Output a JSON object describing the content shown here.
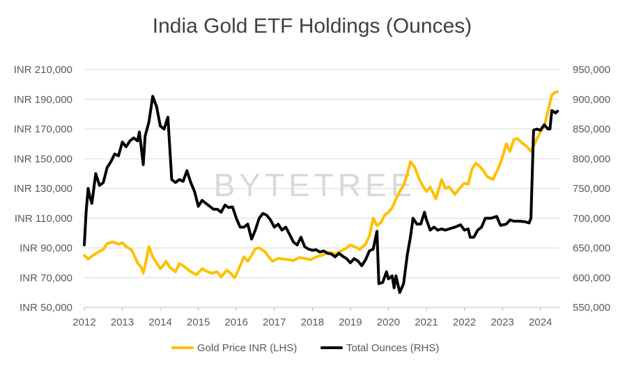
{
  "chart_data": {
    "type": "line",
    "title": "India Gold ETF Holdings (Ounces)",
    "watermark": "BYTETREE",
    "x_ticks": [
      "2012",
      "2013",
      "2014",
      "2015",
      "2016",
      "2017",
      "2018",
      "2019",
      "2020",
      "2021",
      "2022",
      "2023",
      "2024"
    ],
    "xlim": [
      2012,
      2024.5
    ],
    "left_axis": {
      "ticks": [
        "INR 50,000",
        "INR 70,000",
        "INR 90,000",
        "INR 110,000",
        "INR 130,000",
        "INR 150,000",
        "INR 170,000",
        "INR 190,000",
        "INR 210,000"
      ],
      "ylim": [
        50000,
        210000
      ]
    },
    "right_axis": {
      "ticks": [
        "550,000",
        "600,000",
        "650,000",
        "700,000",
        "750,000",
        "800,000",
        "850,000",
        "900,000",
        "950,000"
      ],
      "ylim": [
        550000,
        950000
      ]
    },
    "grid": true,
    "legend_position": "bottom",
    "series": [
      {
        "name": "Gold Price INR (LHS)",
        "axis": "left",
        "color": "#FFC000",
        "points": [
          [
            2012.0,
            85000
          ],
          [
            2012.1,
            82500
          ],
          [
            2012.2,
            84500
          ],
          [
            2012.35,
            87000
          ],
          [
            2012.5,
            89000
          ],
          [
            2012.6,
            93000
          ],
          [
            2012.75,
            94000
          ],
          [
            2012.9,
            92500
          ],
          [
            2013.0,
            93500
          ],
          [
            2013.1,
            91000
          ],
          [
            2013.25,
            88500
          ],
          [
            2013.4,
            80000
          ],
          [
            2013.5,
            77000
          ],
          [
            2013.55,
            73000
          ],
          [
            2013.6,
            78000
          ],
          [
            2013.7,
            91000
          ],
          [
            2013.8,
            84000
          ],
          [
            2013.9,
            80000
          ],
          [
            2014.0,
            76000
          ],
          [
            2014.1,
            79000
          ],
          [
            2014.15,
            81000
          ],
          [
            2014.25,
            77000
          ],
          [
            2014.4,
            74000
          ],
          [
            2014.5,
            79500
          ],
          [
            2014.6,
            78000
          ],
          [
            2014.8,
            74000
          ],
          [
            2014.95,
            72000
          ],
          [
            2015.1,
            76000
          ],
          [
            2015.2,
            74500
          ],
          [
            2015.35,
            73000
          ],
          [
            2015.5,
            74000
          ],
          [
            2015.6,
            70500
          ],
          [
            2015.75,
            75000
          ],
          [
            2015.85,
            73000
          ],
          [
            2015.95,
            70000
          ],
          [
            2016.0,
            72000
          ],
          [
            2016.1,
            78000
          ],
          [
            2016.2,
            84000
          ],
          [
            2016.3,
            81000
          ],
          [
            2016.4,
            85000
          ],
          [
            2016.5,
            89500
          ],
          [
            2016.6,
            90000
          ],
          [
            2016.75,
            87500
          ],
          [
            2016.85,
            84000
          ],
          [
            2016.95,
            81000
          ],
          [
            2017.1,
            83000
          ],
          [
            2017.25,
            82500
          ],
          [
            2017.4,
            82000
          ],
          [
            2017.5,
            81500
          ],
          [
            2017.65,
            83500
          ],
          [
            2017.8,
            83000
          ],
          [
            2017.95,
            82000
          ],
          [
            2018.1,
            84000
          ],
          [
            2018.25,
            85000
          ],
          [
            2018.45,
            87000
          ],
          [
            2018.6,
            86000
          ],
          [
            2018.75,
            88000
          ],
          [
            2018.9,
            90000
          ],
          [
            2019.0,
            92000
          ],
          [
            2019.1,
            91000
          ],
          [
            2019.25,
            89000
          ],
          [
            2019.4,
            92500
          ],
          [
            2019.5,
            98000
          ],
          [
            2019.6,
            110000
          ],
          [
            2019.7,
            105000
          ],
          [
            2019.8,
            107000
          ],
          [
            2019.9,
            112000
          ],
          [
            2020.0,
            114000
          ],
          [
            2020.1,
            117000
          ],
          [
            2020.2,
            123000
          ],
          [
            2020.3,
            128000
          ],
          [
            2020.4,
            132000
          ],
          [
            2020.5,
            140000
          ],
          [
            2020.58,
            148000
          ],
          [
            2020.7,
            144000
          ],
          [
            2020.8,
            137000
          ],
          [
            2020.9,
            132000
          ],
          [
            2021.0,
            128000
          ],
          [
            2021.1,
            131000
          ],
          [
            2021.25,
            123000
          ],
          [
            2021.4,
            136000
          ],
          [
            2021.5,
            130000
          ],
          [
            2021.6,
            131000
          ],
          [
            2021.75,
            126000
          ],
          [
            2021.9,
            131000
          ],
          [
            2022.0,
            133500
          ],
          [
            2022.1,
            133000
          ],
          [
            2022.2,
            143000
          ],
          [
            2022.3,
            147000
          ],
          [
            2022.4,
            145000
          ],
          [
            2022.5,
            142000
          ],
          [
            2022.6,
            138000
          ],
          [
            2022.75,
            136000
          ],
          [
            2022.9,
            144000
          ],
          [
            2023.0,
            151000
          ],
          [
            2023.1,
            160000
          ],
          [
            2023.2,
            155000
          ],
          [
            2023.3,
            163000
          ],
          [
            2023.4,
            163500
          ],
          [
            2023.5,
            161000
          ],
          [
            2023.65,
            158000
          ],
          [
            2023.75,
            155000
          ],
          [
            2023.9,
            163000
          ],
          [
            2024.0,
            168000
          ],
          [
            2024.1,
            172000
          ],
          [
            2024.2,
            182000
          ],
          [
            2024.3,
            193000
          ],
          [
            2024.4,
            195000
          ],
          [
            2024.45,
            195000
          ]
        ]
      },
      {
        "name": "Total Ounces (RHS)",
        "axis": "right",
        "color": "#000000",
        "points": [
          [
            2012.0,
            655000
          ],
          [
            2012.05,
            712000
          ],
          [
            2012.1,
            750000
          ],
          [
            2012.15,
            735000
          ],
          [
            2012.2,
            725000
          ],
          [
            2012.3,
            775000
          ],
          [
            2012.4,
            755000
          ],
          [
            2012.5,
            760000
          ],
          [
            2012.6,
            785000
          ],
          [
            2012.7,
            795000
          ],
          [
            2012.8,
            808000
          ],
          [
            2012.9,
            805000
          ],
          [
            2013.0,
            828000
          ],
          [
            2013.1,
            820000
          ],
          [
            2013.2,
            830000
          ],
          [
            2013.3,
            835000
          ],
          [
            2013.4,
            830000
          ],
          [
            2013.45,
            845000
          ],
          [
            2013.55,
            790000
          ],
          [
            2013.6,
            838000
          ],
          [
            2013.7,
            862000
          ],
          [
            2013.8,
            905000
          ],
          [
            2013.9,
            888000
          ],
          [
            2014.0,
            855000
          ],
          [
            2014.1,
            850000
          ],
          [
            2014.2,
            870000
          ],
          [
            2014.3,
            765000
          ],
          [
            2014.4,
            760000
          ],
          [
            2014.5,
            765000
          ],
          [
            2014.6,
            762000
          ],
          [
            2014.7,
            780000
          ],
          [
            2014.8,
            760000
          ],
          [
            2014.9,
            745000
          ],
          [
            2015.0,
            720000
          ],
          [
            2015.1,
            730000
          ],
          [
            2015.2,
            725000
          ],
          [
            2015.3,
            720000
          ],
          [
            2015.4,
            715000
          ],
          [
            2015.5,
            715000
          ],
          [
            2015.6,
            710000
          ],
          [
            2015.7,
            722000
          ],
          [
            2015.8,
            718000
          ],
          [
            2015.9,
            719000
          ],
          [
            2016.0,
            700000
          ],
          [
            2016.1,
            685000
          ],
          [
            2016.2,
            685000
          ],
          [
            2016.3,
            690000
          ],
          [
            2016.4,
            665000
          ],
          [
            2016.5,
            680000
          ],
          [
            2016.6,
            700000
          ],
          [
            2016.7,
            708000
          ],
          [
            2016.8,
            705000
          ],
          [
            2016.9,
            697000
          ],
          [
            2017.0,
            685000
          ],
          [
            2017.1,
            690000
          ],
          [
            2017.2,
            680000
          ],
          [
            2017.3,
            685000
          ],
          [
            2017.4,
            673000
          ],
          [
            2017.5,
            660000
          ],
          [
            2017.6,
            655000
          ],
          [
            2017.7,
            668000
          ],
          [
            2017.8,
            652000
          ],
          [
            2017.9,
            648000
          ],
          [
            2018.0,
            646000
          ],
          [
            2018.1,
            647000
          ],
          [
            2018.2,
            643000
          ],
          [
            2018.3,
            645000
          ],
          [
            2018.4,
            641000
          ],
          [
            2018.5,
            640000
          ],
          [
            2018.6,
            635000
          ],
          [
            2018.7,
            641000
          ],
          [
            2018.8,
            636000
          ],
          [
            2018.9,
            632000
          ],
          [
            2019.0,
            625000
          ],
          [
            2019.1,
            632000
          ],
          [
            2019.2,
            628000
          ],
          [
            2019.3,
            620000
          ],
          [
            2019.4,
            630000
          ],
          [
            2019.5,
            645000
          ],
          [
            2019.6,
            648000
          ],
          [
            2019.7,
            678000
          ],
          [
            2019.75,
            590000
          ],
          [
            2019.85,
            592000
          ],
          [
            2019.95,
            610000
          ],
          [
            2020.0,
            598000
          ],
          [
            2020.1,
            603000
          ],
          [
            2020.15,
            583000
          ],
          [
            2020.2,
            603000
          ],
          [
            2020.3,
            575000
          ],
          [
            2020.4,
            590000
          ],
          [
            2020.5,
            640000
          ],
          [
            2020.58,
            668000
          ],
          [
            2020.65,
            700000
          ],
          [
            2020.75,
            690000
          ],
          [
            2020.85,
            690000
          ],
          [
            2020.95,
            710000
          ],
          [
            2021.0,
            698000
          ],
          [
            2021.1,
            680000
          ],
          [
            2021.2,
            685000
          ],
          [
            2021.3,
            680000
          ],
          [
            2021.4,
            682000
          ],
          [
            2021.5,
            680000
          ],
          [
            2021.6,
            682000
          ],
          [
            2021.75,
            685000
          ],
          [
            2021.9,
            689000
          ],
          [
            2022.0,
            680000
          ],
          [
            2022.1,
            682000
          ],
          [
            2022.15,
            668000
          ],
          [
            2022.25,
            668000
          ],
          [
            2022.35,
            680000
          ],
          [
            2022.45,
            685000
          ],
          [
            2022.55,
            700000
          ],
          [
            2022.7,
            700000
          ],
          [
            2022.85,
            703000
          ],
          [
            2022.95,
            688000
          ],
          [
            2023.1,
            690000
          ],
          [
            2023.2,
            697000
          ],
          [
            2023.3,
            695000
          ],
          [
            2023.45,
            695000
          ],
          [
            2023.6,
            694000
          ],
          [
            2023.7,
            692000
          ],
          [
            2023.75,
            700000
          ],
          [
            2023.82,
            848000
          ],
          [
            2023.9,
            850000
          ],
          [
            2024.0,
            848000
          ],
          [
            2024.1,
            857000
          ],
          [
            2024.2,
            850000
          ],
          [
            2024.25,
            850000
          ],
          [
            2024.3,
            881000
          ],
          [
            2024.4,
            877000
          ],
          [
            2024.45,
            880000
          ]
        ]
      }
    ]
  }
}
